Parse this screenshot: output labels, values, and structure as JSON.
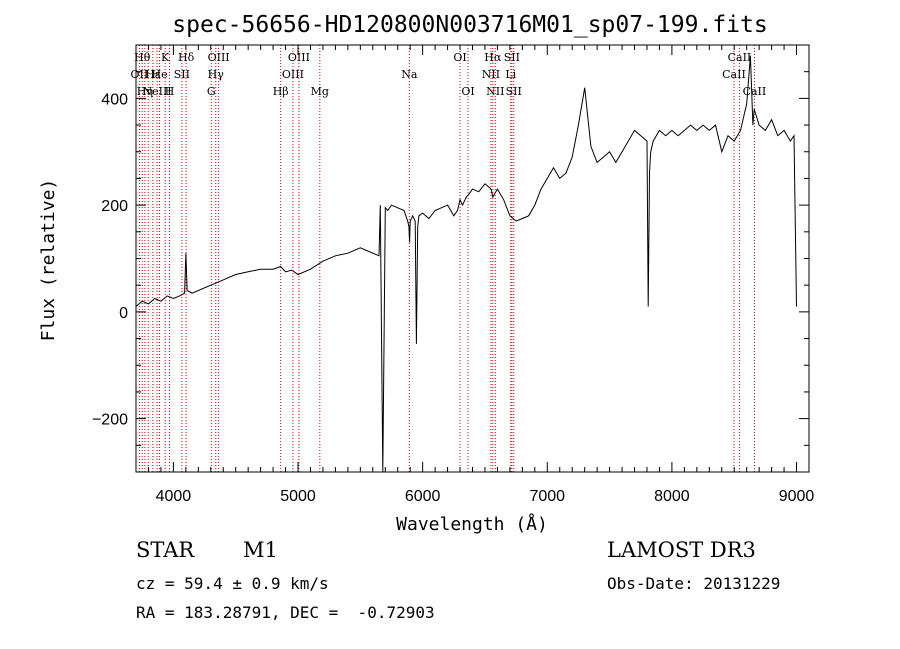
{
  "chart_data": {
    "type": "line",
    "title": "spec-56656-HD120800N003716M01_sp07-199.fits",
    "xlabel": "Wavelength (Å)",
    "ylabel": "Flux (relative)",
    "xlim": [
      3700,
      9100
    ],
    "ylim": [
      -300,
      500
    ],
    "x_ticks": [
      4000,
      5000,
      6000,
      7000,
      8000,
      9000
    ],
    "y_ticks": [
      -200,
      0,
      200,
      400
    ],
    "colors": {
      "line": "#000000",
      "markers": "#cc0000",
      "axes": "#000000"
    },
    "series": [
      {
        "name": "spectrum",
        "x": [
          3700,
          3750,
          3800,
          3850,
          3900,
          3950,
          4000,
          4050,
          4090,
          4100,
          4110,
          4150,
          4200,
          4300,
          4400,
          4500,
          4600,
          4700,
          4800,
          4860,
          4900,
          4950,
          5000,
          5100,
          5200,
          5300,
          5400,
          5500,
          5550,
          5600,
          5650,
          5660,
          5680,
          5700,
          5720,
          5750,
          5800,
          5850,
          5880,
          5890,
          5895,
          5900,
          5920,
          5940,
          5950,
          5960,
          5970,
          6000,
          6050,
          6100,
          6150,
          6200,
          6250,
          6280,
          6300,
          6320,
          6350,
          6370,
          6400,
          6450,
          6500,
          6550,
          6563,
          6600,
          6650,
          6700,
          6750,
          6800,
          6850,
          6900,
          6950,
          7000,
          7050,
          7100,
          7150,
          7200,
          7250,
          7300,
          7350,
          7400,
          7450,
          7500,
          7550,
          7600,
          7650,
          7700,
          7750,
          7800,
          7810,
          7820,
          7830,
          7850,
          7900,
          7950,
          8000,
          8050,
          8100,
          8150,
          8200,
          8250,
          8300,
          8350,
          8400,
          8450,
          8500,
          8550,
          8600,
          8630,
          8650,
          8660,
          8700,
          8750,
          8800,
          8850,
          8900,
          8950,
          8980,
          9000
        ],
        "y": [
          10,
          20,
          15,
          25,
          20,
          30,
          25,
          30,
          35,
          110,
          40,
          35,
          40,
          50,
          60,
          70,
          75,
          80,
          80,
          85,
          75,
          78,
          70,
          80,
          95,
          105,
          110,
          120,
          115,
          110,
          105,
          200,
          -300,
          195,
          190,
          200,
          195,
          190,
          170,
          160,
          130,
          170,
          180,
          170,
          -60,
          160,
          180,
          185,
          175,
          190,
          195,
          200,
          180,
          190,
          210,
          200,
          215,
          220,
          230,
          225,
          240,
          230,
          215,
          230,
          210,
          180,
          170,
          175,
          180,
          200,
          230,
          250,
          270,
          250,
          260,
          290,
          350,
          420,
          310,
          280,
          290,
          300,
          280,
          300,
          320,
          340,
          330,
          320,
          10,
          260,
          300,
          320,
          340,
          330,
          340,
          330,
          340,
          350,
          340,
          350,
          340,
          350,
          300,
          330,
          320,
          340,
          390,
          480,
          350,
          380,
          350,
          340,
          360,
          330,
          340,
          320,
          330,
          10
        ]
      }
    ],
    "lines": [
      {
        "x": 3727,
        "labels": [
          {
            "text": "OII",
            "row": 2
          }
        ]
      },
      {
        "x": 3750,
        "labels": [
          {
            "text": "Hθ",
            "row": 1
          }
        ]
      },
      {
        "x": 3771,
        "labels": [
          {
            "text": "Hη",
            "row": 3
          }
        ]
      },
      {
        "x": 3798,
        "labels": [
          {
            "text": "",
            "row": 0
          }
        ]
      },
      {
        "x": 3835,
        "labels": [
          {
            "text": "Hε",
            "row": 2
          }
        ]
      },
      {
        "x": 3869,
        "labels": [
          {
            "text": "NeIII",
            "row": 3
          }
        ]
      },
      {
        "x": 3889,
        "labels": [
          {
            "text": "He",
            "row": 2
          }
        ]
      },
      {
        "x": 3934,
        "labels": [
          {
            "text": "K",
            "row": 1
          }
        ]
      },
      {
        "x": 3969,
        "labels": [
          {
            "text": "H",
            "row": 3
          }
        ]
      },
      {
        "x": 4068,
        "labels": [
          {
            "text": "SII",
            "row": 2
          }
        ]
      },
      {
        "x": 4102,
        "labels": [
          {
            "text": "Hδ",
            "row": 1
          }
        ]
      },
      {
        "x": 4304,
        "labels": [
          {
            "text": "G",
            "row": 3
          }
        ]
      },
      {
        "x": 4340,
        "labels": [
          {
            "text": "Hγ",
            "row": 2
          }
        ]
      },
      {
        "x": 4363,
        "labels": [
          {
            "text": "OIII",
            "row": 1
          }
        ]
      },
      {
        "x": 4861,
        "labels": [
          {
            "text": "Hβ",
            "row": 3
          }
        ]
      },
      {
        "x": 4959,
        "labels": [
          {
            "text": "OIII",
            "row": 2
          }
        ]
      },
      {
        "x": 5007,
        "labels": [
          {
            "text": "OIII",
            "row": 1
          }
        ]
      },
      {
        "x": 5175,
        "labels": [
          {
            "text": "Mg",
            "row": 3
          }
        ]
      },
      {
        "x": 5893,
        "labels": [
          {
            "text": "Na",
            "row": 2
          }
        ]
      },
      {
        "x": 6300,
        "labels": [
          {
            "text": "OI",
            "row": 1
          }
        ]
      },
      {
        "x": 6364,
        "labels": [
          {
            "text": "OI",
            "row": 3
          }
        ]
      },
      {
        "x": 6548,
        "labels": [
          {
            "text": "NII",
            "row": 2
          }
        ]
      },
      {
        "x": 6563,
        "labels": [
          {
            "text": "Hα",
            "row": 1
          }
        ]
      },
      {
        "x": 6583,
        "labels": [
          {
            "text": "NII",
            "row": 3
          }
        ]
      },
      {
        "x": 6707,
        "labels": [
          {
            "text": "Li",
            "row": 2
          }
        ]
      },
      {
        "x": 6716,
        "labels": [
          {
            "text": "SII",
            "row": 1
          }
        ]
      },
      {
        "x": 6731,
        "labels": [
          {
            "text": "SII",
            "row": 3
          }
        ]
      },
      {
        "x": 8498,
        "labels": [
          {
            "text": "CaII",
            "row": 2
          }
        ]
      },
      {
        "x": 8542,
        "labels": [
          {
            "text": "CaII",
            "row": 1
          }
        ]
      },
      {
        "x": 8662,
        "labels": [
          {
            "text": "CaII",
            "row": 3
          }
        ]
      }
    ]
  },
  "info": {
    "object_type": "STAR",
    "subclass": "M1",
    "survey": "LAMOST DR3",
    "cz": "cz = 59.4 ± 0.9 km/s",
    "obs_date": "Obs-Date: 20131229",
    "coords": "RA = 183.28791, DEC =  -0.72903"
  }
}
